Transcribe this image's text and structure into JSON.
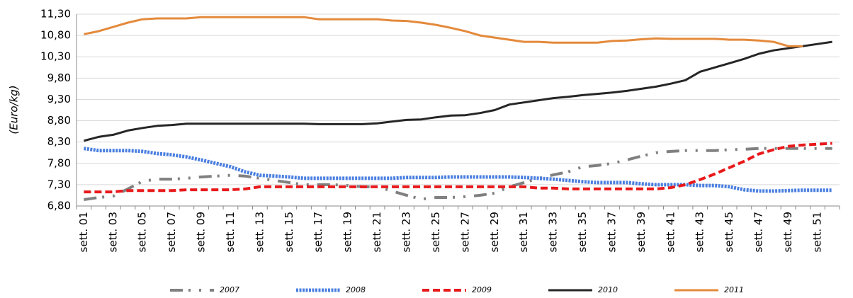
{
  "chart_data": {
    "type": "line",
    "y_label": "(Euro/kg)",
    "categories": [
      "sett. 01",
      null,
      "sett. 03",
      null,
      "sett. 05",
      null,
      "sett. 07",
      null,
      "sett. 09",
      null,
      "sett. 11",
      null,
      "sett. 13",
      null,
      "sett. 15",
      null,
      "sett. 17",
      null,
      "sett. 19",
      null,
      "sett. 21",
      null,
      "sett. 23",
      null,
      "sett. 25",
      null,
      "sett. 27",
      null,
      "sett. 29",
      null,
      "sett. 31",
      null,
      "sett. 33",
      null,
      "sett. 35",
      null,
      "sett. 37",
      null,
      "sett. 39",
      null,
      "sett. 41",
      null,
      "sett. 43",
      null,
      "sett. 45",
      null,
      "sett. 47",
      null,
      "sett. 49",
      null,
      "sett. 51",
      null
    ],
    "ylim": [
      6.8,
      11.3
    ],
    "yticks": [
      {
        "value": 6.8,
        "label": "6,80"
      },
      {
        "value": 7.3,
        "label": "7,30"
      },
      {
        "value": 7.8,
        "label": "7,80"
      },
      {
        "value": 8.3,
        "label": "8,30"
      },
      {
        "value": 8.8,
        "label": "8,80"
      },
      {
        "value": 9.3,
        "label": "9,30"
      },
      {
        "value": 9.8,
        "label": "9,80"
      },
      {
        "value": 10.3,
        "label": "10,30"
      },
      {
        "value": 10.8,
        "label": "10,80"
      },
      {
        "value": 11.3,
        "label": "11,30"
      }
    ],
    "grid": true,
    "legend": "bottom",
    "series": [
      {
        "name": "2007",
        "color": "#808080",
        "values": [
          6.95,
          7.0,
          7.03,
          7.2,
          7.38,
          7.43,
          7.43,
          7.45,
          7.48,
          7.5,
          7.52,
          7.5,
          7.45,
          7.4,
          7.35,
          7.3,
          7.3,
          7.3,
          7.28,
          7.25,
          7.25,
          7.15,
          7.05,
          6.96,
          7.0,
          7.0,
          7.02,
          7.05,
          7.1,
          7.25,
          7.35,
          7.45,
          7.53,
          7.6,
          7.72,
          7.75,
          7.8,
          7.88,
          7.97,
          8.05,
          8.08,
          8.1,
          8.1,
          8.1,
          8.12,
          8.13,
          8.15,
          8.15,
          8.15,
          8.15,
          8.15,
          8.15
        ]
      },
      {
        "name": "2008",
        "color": "#4a7fe0",
        "values": [
          8.15,
          8.1,
          8.1,
          8.1,
          8.08,
          8.03,
          8.0,
          7.95,
          7.88,
          7.8,
          7.72,
          7.6,
          7.52,
          7.5,
          7.48,
          7.45,
          7.45,
          7.45,
          7.45,
          7.45,
          7.45,
          7.45,
          7.47,
          7.47,
          7.47,
          7.48,
          7.48,
          7.48,
          7.48,
          7.48,
          7.47,
          7.45,
          7.43,
          7.4,
          7.37,
          7.35,
          7.35,
          7.35,
          7.32,
          7.3,
          7.3,
          7.3,
          7.28,
          7.28,
          7.25,
          7.18,
          7.15,
          7.15,
          7.16,
          7.17,
          7.17,
          7.17
        ]
      },
      {
        "name": "2009",
        "color": "#e8191b",
        "values": [
          7.13,
          7.13,
          7.13,
          7.16,
          7.16,
          7.16,
          7.16,
          7.18,
          7.18,
          7.18,
          7.18,
          7.2,
          7.25,
          7.25,
          7.25,
          7.25,
          7.25,
          7.25,
          7.25,
          7.25,
          7.25,
          7.25,
          7.25,
          7.25,
          7.25,
          7.25,
          7.25,
          7.25,
          7.25,
          7.25,
          7.25,
          7.22,
          7.22,
          7.2,
          7.2,
          7.2,
          7.2,
          7.2,
          7.2,
          7.2,
          7.23,
          7.3,
          7.42,
          7.55,
          7.7,
          7.85,
          8.02,
          8.12,
          8.2,
          8.23,
          8.25,
          8.27
        ]
      },
      {
        "name": "2010",
        "color": "#262626",
        "values": [
          8.33,
          8.42,
          8.47,
          8.57,
          8.63,
          8.68,
          8.7,
          8.73,
          8.73,
          8.73,
          8.73,
          8.73,
          8.73,
          8.73,
          8.73,
          8.73,
          8.72,
          8.72,
          8.72,
          8.72,
          8.74,
          8.78,
          8.82,
          8.83,
          8.88,
          8.92,
          8.93,
          8.98,
          9.05,
          9.18,
          9.23,
          9.28,
          9.33,
          9.36,
          9.4,
          9.43,
          9.46,
          9.5,
          9.55,
          9.6,
          9.67,
          9.75,
          9.95,
          10.05,
          10.15,
          10.25,
          10.37,
          10.45,
          10.5,
          10.55,
          10.6,
          10.65
        ]
      },
      {
        "name": "2011",
        "color": "#e48a3c",
        "values": [
          10.83,
          10.9,
          11.0,
          11.1,
          11.18,
          11.2,
          11.2,
          11.2,
          11.23,
          11.23,
          11.23,
          11.23,
          11.23,
          11.23,
          11.23,
          11.23,
          11.18,
          11.18,
          11.18,
          11.18,
          11.18,
          11.15,
          11.14,
          11.1,
          11.05,
          10.98,
          10.9,
          10.8,
          10.75,
          10.7,
          10.65,
          10.65,
          10.63,
          10.63,
          10.63,
          10.63,
          10.67,
          10.68,
          10.71,
          10.73,
          10.72,
          10.72,
          10.72,
          10.72,
          10.7,
          10.7,
          10.68,
          10.65,
          10.55,
          10.55,
          null,
          null
        ]
      }
    ]
  }
}
